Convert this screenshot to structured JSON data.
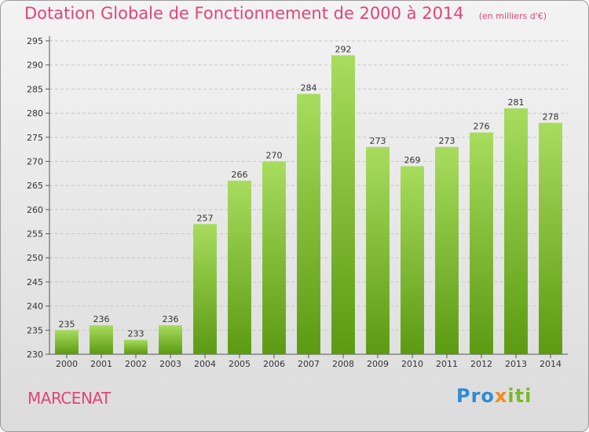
{
  "header": {
    "title": "Dotation Globale de Fonctionnement de 2000 à 2014",
    "subtitle": "(en milliers d'€)"
  },
  "footer": {
    "commune": "MARCENAT",
    "logo": {
      "part1": "Pro",
      "part2": "x",
      "part3": "iti"
    }
  },
  "colors": {
    "title": "#e0457a",
    "bar_top": "#a8dc5e",
    "bar_bottom": "#5c9a12",
    "grid": "#c8c8c8"
  },
  "chart_data": {
    "type": "bar",
    "title": "Dotation Globale de Fonctionnement de 2000 à 2014",
    "subtitle": "(en milliers d'€)",
    "xlabel": "",
    "ylabel": "",
    "categories": [
      "2000",
      "2001",
      "2002",
      "2003",
      "2004",
      "2005",
      "2006",
      "2007",
      "2008",
      "2009",
      "2010",
      "2011",
      "2012",
      "2013",
      "2014"
    ],
    "values": [
      235,
      236,
      233,
      236,
      257,
      266,
      270,
      284,
      292,
      273,
      269,
      273,
      276,
      281,
      278
    ],
    "ylim": [
      230,
      295
    ],
    "yticks": [
      230,
      235,
      240,
      245,
      250,
      255,
      260,
      265,
      270,
      275,
      280,
      285,
      290,
      295
    ],
    "grid": true,
    "legend": "none"
  }
}
